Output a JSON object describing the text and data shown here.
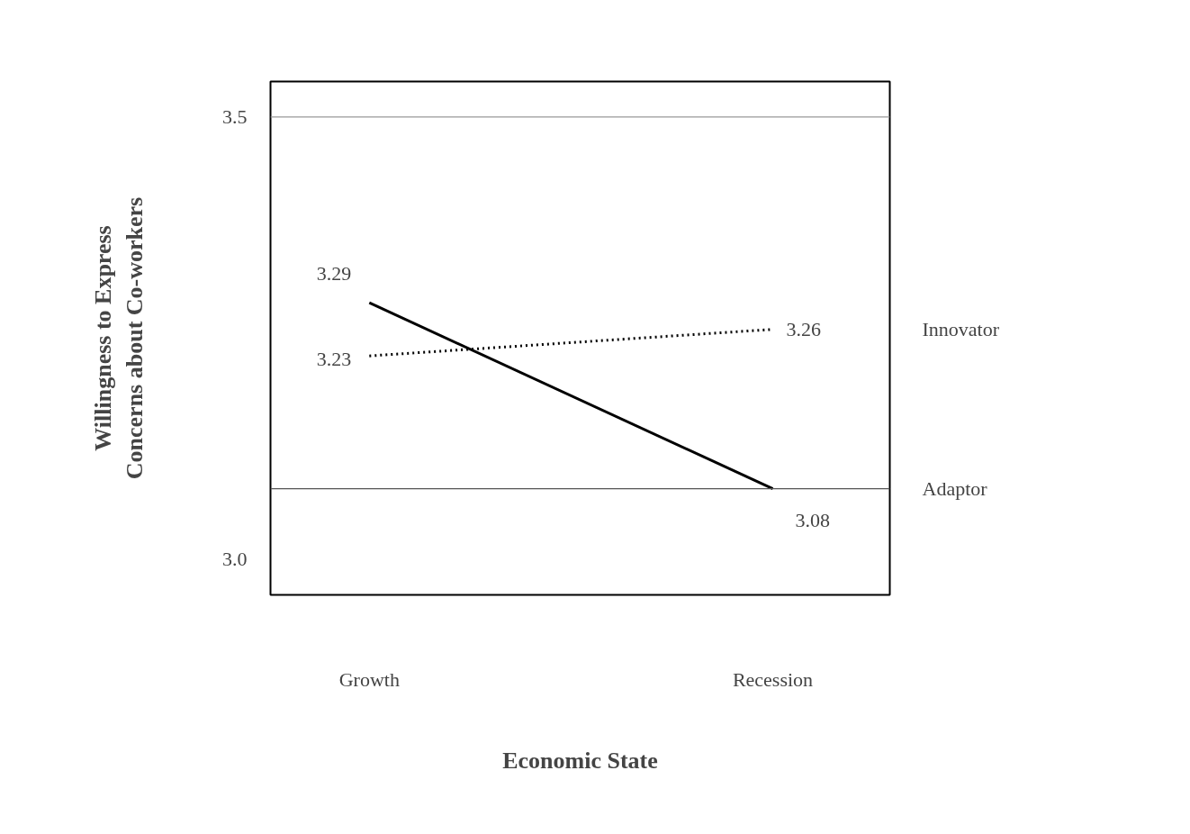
{
  "chart_data": {
    "type": "line",
    "xlabel": "Economic State",
    "ylabel": "Willingness to Express\nConcerns about Co-workers",
    "categories": [
      "Growth",
      "Recession"
    ],
    "series": [
      {
        "name": "Innovator",
        "color": "#000000",
        "line_style": "dotted",
        "values": [
          3.23,
          3.26
        ]
      },
      {
        "name": "Adaptor",
        "color": "#000000",
        "line_style": "solid",
        "values": [
          3.29,
          3.08
        ]
      }
    ],
    "ylim": [
      2.96,
      3.54
    ],
    "yticks": [
      {
        "value": 3.0,
        "label": "3.0"
      },
      {
        "value": 3.5,
        "label": "3.5"
      }
    ],
    "ref_lines": [
      {
        "axis": "y",
        "value": 3.5,
        "color": "#999999"
      },
      {
        "axis": "y",
        "value": 3.08,
        "color": "#555555"
      }
    ],
    "data_labels": true,
    "marker": "none",
    "grid": false
  }
}
